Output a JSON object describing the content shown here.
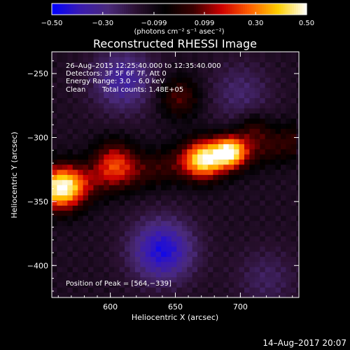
{
  "chart_data": {
    "type": "heatmap",
    "title": "Reconstructed RHESSI Image",
    "colorbar": {
      "min": -0.5,
      "max": 0.5,
      "tick_labels": [
        "−0.50",
        "−0.30",
        "−0.099",
        "0.099",
        "0.30",
        "0.50"
      ],
      "tick_values": [
        -0.5,
        -0.3,
        -0.099,
        0.099,
        0.3,
        0.5
      ],
      "unit_label": "(photons cm⁻² s⁻¹ asec⁻²)",
      "colormap": [
        "#0000ff",
        "#3a1bb0",
        "#4a2a7a",
        "#2a1030",
        "#000000",
        "#3a0000",
        "#cc0000",
        "#ff6000",
        "#ffd000",
        "#ffffff"
      ]
    },
    "xlabel": "Heliocentric X (arcsec)",
    "ylabel": "Heliocentric Y (arcsec)",
    "xlim": [
      555,
      745
    ],
    "ylim": [
      -425,
      -233
    ],
    "x_ticks": [
      600,
      650,
      700
    ],
    "x_tick_labels": [
      "600",
      "650",
      "700"
    ],
    "y_ticks": [
      -250,
      -300,
      -350,
      -400
    ],
    "y_tick_labels": [
      "−250",
      "−300",
      "−350",
      "−400"
    ],
    "annotations": [
      "26–Aug–2015 12:25:40.000 to 12:35:40.000",
      "Detectors: 3F 5F 6F 7F, Att 0",
      "Energy Range: 3.0 – 6.0 keV",
      "Clean",
      "Total counts: 1.48E+05"
    ],
    "peak_label": "Position of Peak = [564,−339]",
    "peak": [
      564,
      -339
    ],
    "sources": [
      {
        "x": 563,
        "y": -339,
        "amp": 0.5
      },
      {
        "x": 603,
        "y": -318,
        "amp": 0.28
      },
      {
        "x": 672,
        "y": -317,
        "amp": 0.46
      },
      {
        "x": 692,
        "y": -311,
        "amp": 0.48
      },
      {
        "x": 653,
        "y": -268,
        "amp": 0.2
      },
      {
        "x": 710,
        "y": -292,
        "amp": 0.14
      }
    ],
    "negative_regions": [
      {
        "x": 640,
        "y": -388,
        "amp": -0.32
      },
      {
        "x": 610,
        "y": -255,
        "amp": -0.22
      },
      {
        "x": 700,
        "y": -265,
        "amp": -0.12
      },
      {
        "x": 720,
        "y": -410,
        "amp": -0.1
      }
    ]
  },
  "footer": {
    "date": "14–Aug–2017 20:07"
  }
}
